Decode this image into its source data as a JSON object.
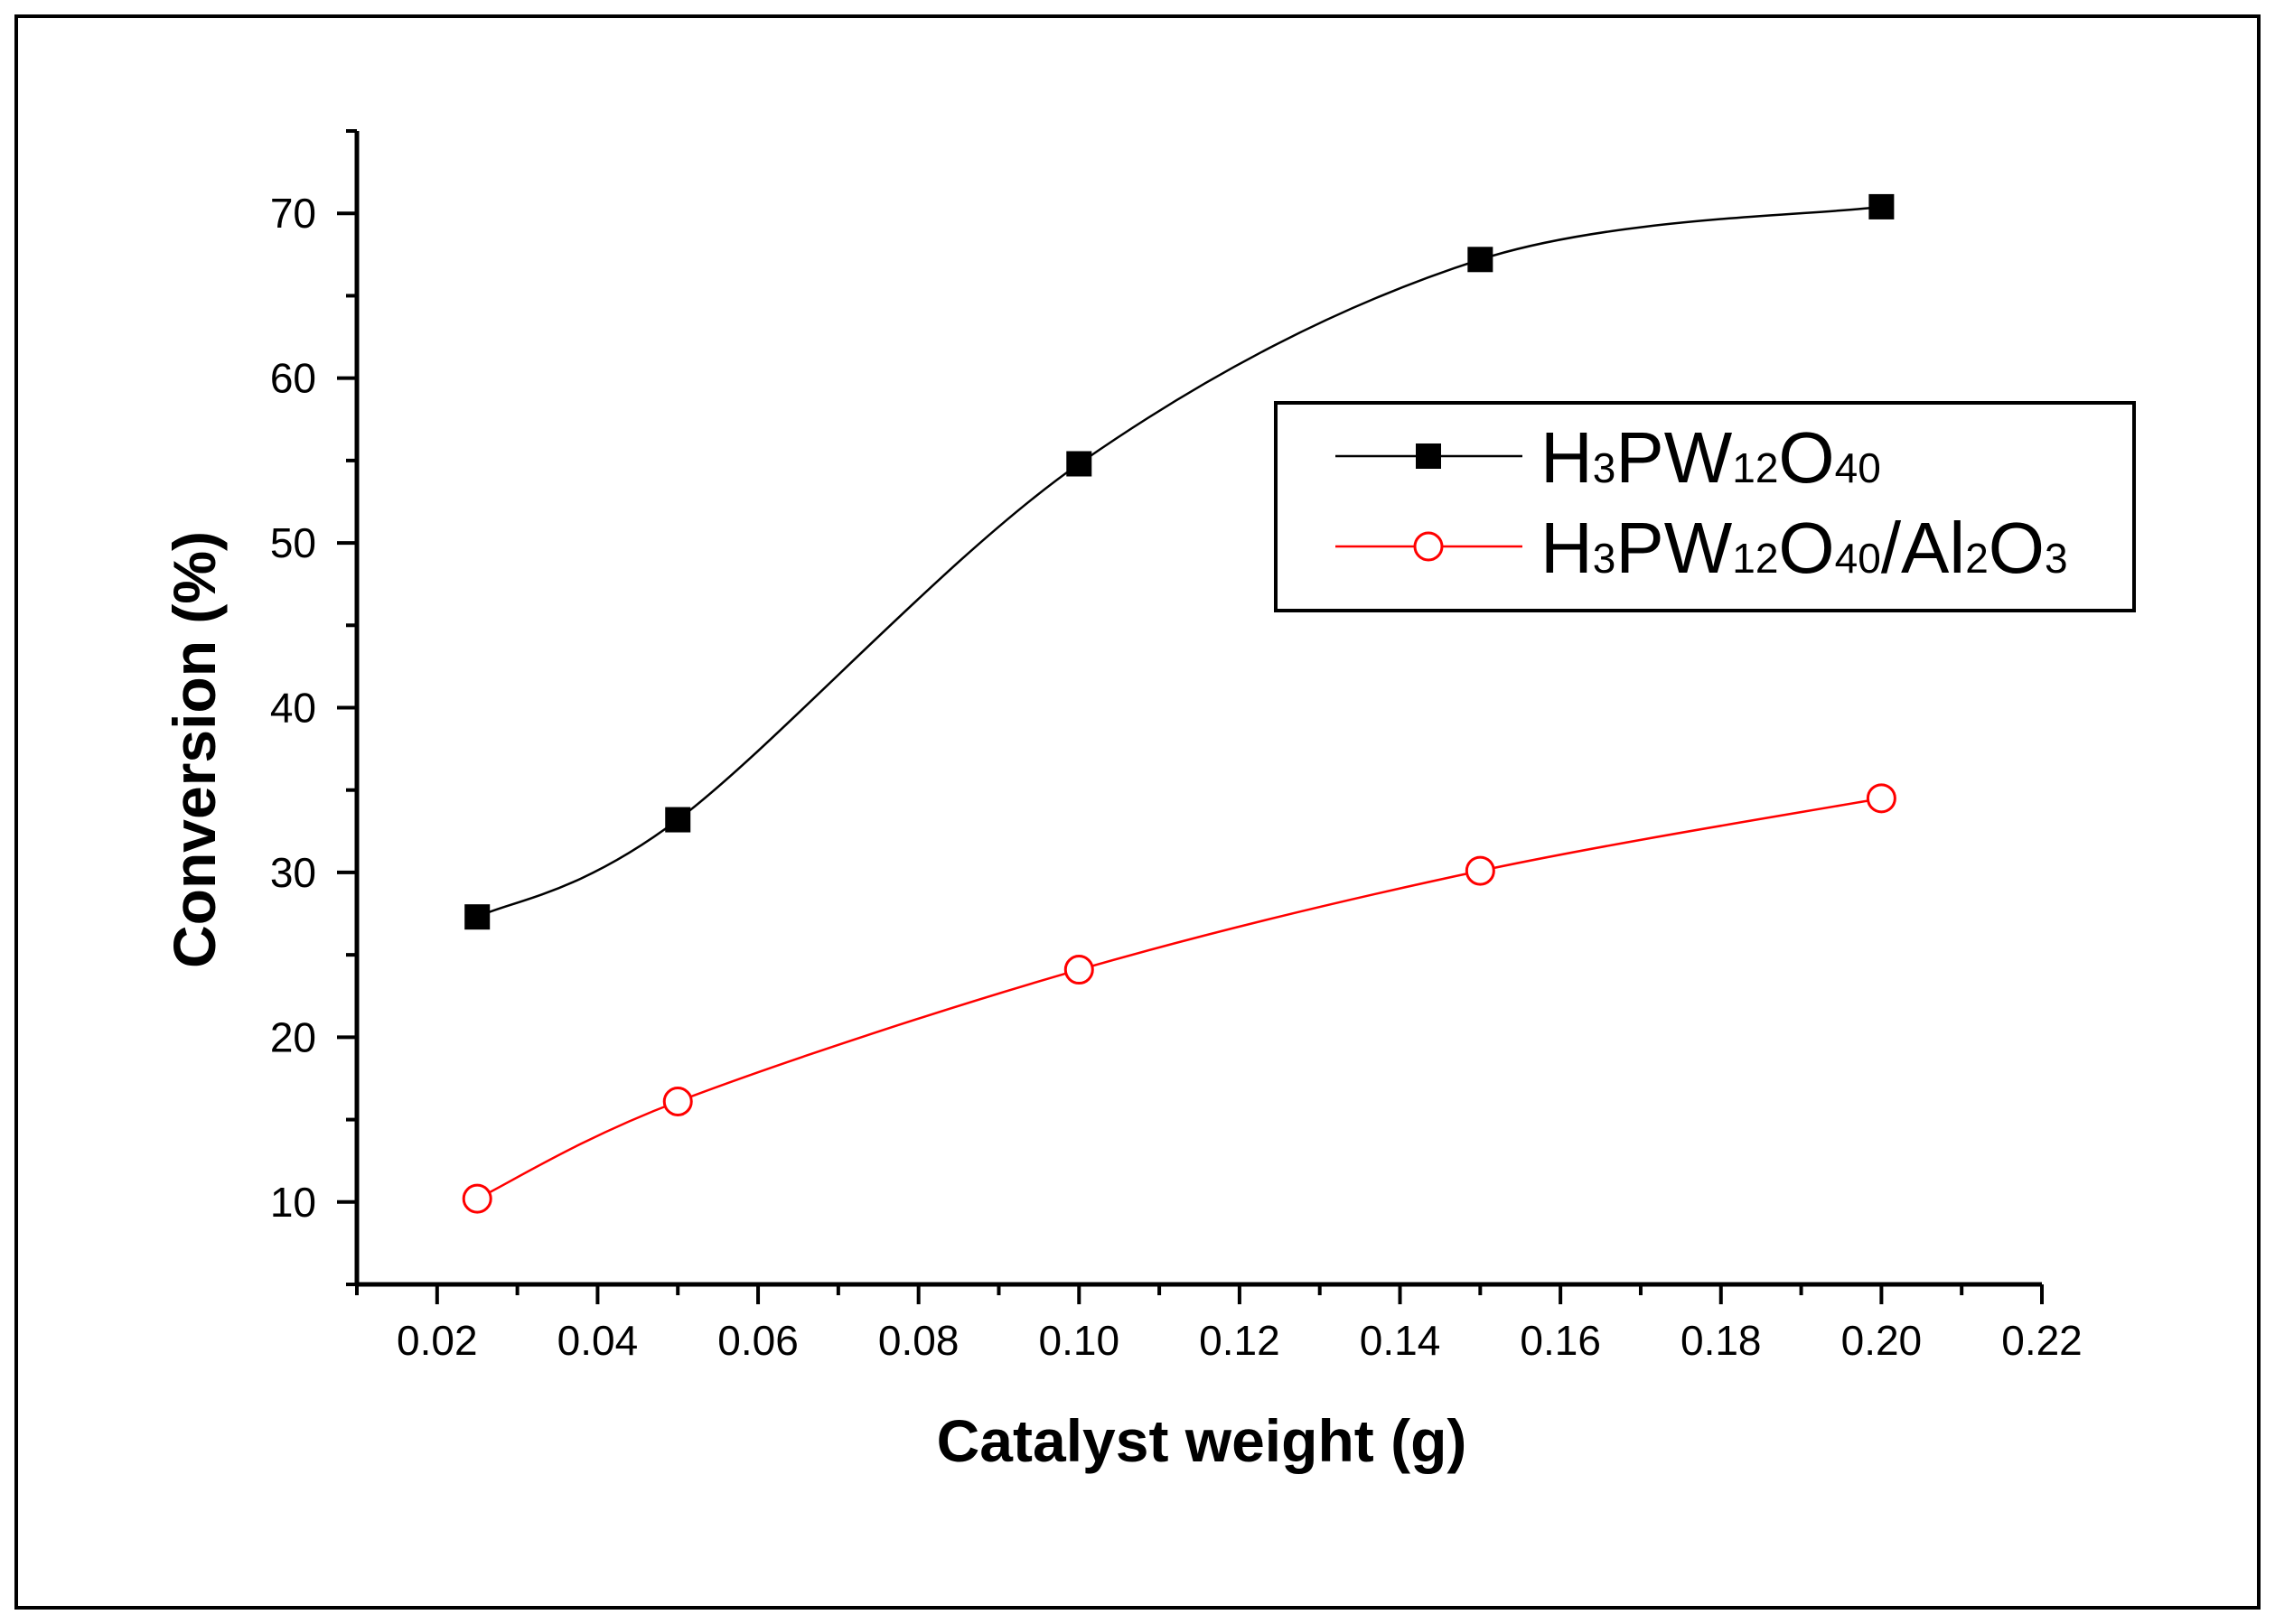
{
  "chart_data": {
    "type": "line",
    "title": "",
    "xlabel": "Catalyst weight (g)",
    "ylabel": "Conversion (%)",
    "xlim": [
      0.01,
      0.22
    ],
    "ylim": [
      5,
      75
    ],
    "x_ticks": [
      0.02,
      0.04,
      0.06,
      0.08,
      0.1,
      0.12,
      0.14,
      0.16,
      0.18,
      0.2,
      0.22
    ],
    "x_tick_labels": [
      "0.02",
      "0.04",
      "0.06",
      "0.08",
      "0.10",
      "0.12",
      "0.14",
      "0.16",
      "0.18",
      "0.20",
      "0.22"
    ],
    "y_ticks": [
      10,
      20,
      30,
      40,
      50,
      60,
      70
    ],
    "y_tick_labels": [
      "10",
      "20",
      "30",
      "40",
      "50",
      "60",
      "70"
    ],
    "legend_position": "top-right",
    "series": [
      {
        "name": "H3PW12O40",
        "legend_parts": [
          {
            "t": "H",
            "sub": false
          },
          {
            "t": "3",
            "sub": true
          },
          {
            "t": "PW",
            "sub": false
          },
          {
            "t": "12",
            "sub": true
          },
          {
            "t": "O",
            "sub": false
          },
          {
            "t": "40",
            "sub": true
          }
        ],
        "color": "#000000",
        "marker": "filled-square",
        "x": [
          0.025,
          0.05,
          0.1,
          0.15,
          0.2
        ],
        "y": [
          27.3,
          33.2,
          54.8,
          67.2,
          70.4
        ]
      },
      {
        "name": "H3PW12O40/Al2O3",
        "legend_parts": [
          {
            "t": "H",
            "sub": false
          },
          {
            "t": "3",
            "sub": true
          },
          {
            "t": "PW",
            "sub": false
          },
          {
            "t": "12",
            "sub": true
          },
          {
            "t": "O",
            "sub": false
          },
          {
            "t": "40",
            "sub": true
          },
          {
            "t": "/Al",
            "sub": false
          },
          {
            "t": "2",
            "sub": true
          },
          {
            "t": "O",
            "sub": false
          },
          {
            "t": "3",
            "sub": true
          }
        ],
        "color": "#ff0000",
        "marker": "open-circle",
        "x": [
          0.025,
          0.05,
          0.1,
          0.15,
          0.2
        ],
        "y": [
          10.2,
          16.1,
          24.1,
          30.1,
          34.5
        ]
      }
    ]
  }
}
